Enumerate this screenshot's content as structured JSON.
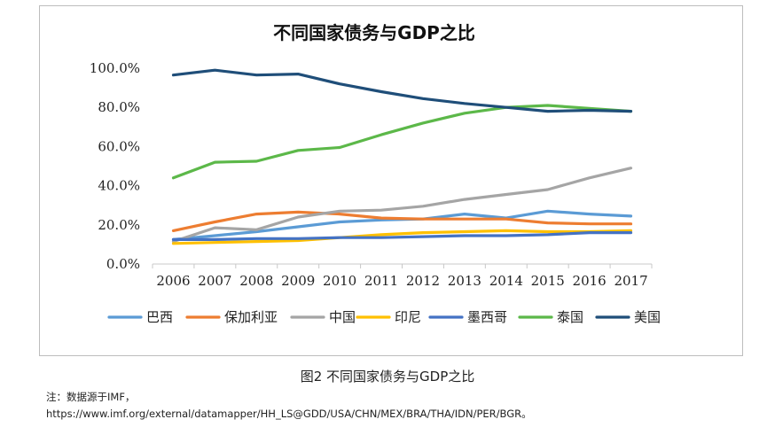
{
  "chart_data": {
    "type": "line",
    "title": "不同国家债务与GDP之比",
    "xlabel": "",
    "ylabel": "",
    "x": [
      "2006",
      "2007",
      "2008",
      "2009",
      "2010",
      "2011",
      "2012",
      "2013",
      "2014",
      "2015",
      "2016",
      "2017"
    ],
    "ylim": [
      0,
      100
    ],
    "yticks": [
      "0.0%",
      "20.0%",
      "40.0%",
      "60.0%",
      "80.0%",
      "100.0%"
    ],
    "grid": false,
    "legend_position": "bottom",
    "series": [
      {
        "name": "巴西",
        "color": "#5B9BD5",
        "values": [
          12.5,
          14.5,
          16.5,
          19.0,
          21.5,
          22.5,
          23.0,
          25.5,
          23.5,
          27.0,
          25.5,
          24.5
        ]
      },
      {
        "name": "保加利亚",
        "color": "#ED7D31",
        "values": [
          17.0,
          21.5,
          25.5,
          26.5,
          25.5,
          23.5,
          23.0,
          23.0,
          23.0,
          21.0,
          20.5,
          20.5
        ]
      },
      {
        "name": "中国",
        "color": "#A5A5A5",
        "values": [
          11.5,
          18.5,
          17.5,
          24.0,
          27.0,
          27.5,
          29.5,
          33.0,
          35.5,
          38.0,
          44.0,
          49.0
        ]
      },
      {
        "name": "印尼",
        "color": "#FFC000",
        "values": [
          10.5,
          11.0,
          11.5,
          12.0,
          13.5,
          15.0,
          16.0,
          16.5,
          17.0,
          16.5,
          16.5,
          17.0
        ]
      },
      {
        "name": "墨西哥",
        "color": "#4472C4",
        "values": [
          12.5,
          12.5,
          13.0,
          13.0,
          13.5,
          13.5,
          14.0,
          14.5,
          14.5,
          15.0,
          16.0,
          16.0
        ]
      },
      {
        "name": "泰国",
        "color": "#5CB849",
        "values": [
          44.0,
          52.0,
          52.5,
          58.0,
          59.5,
          66.0,
          72.0,
          77.0,
          80.0,
          81.0,
          79.5,
          78.0
        ]
      },
      {
        "name": "美国",
        "color": "#1F4E79",
        "values": [
          96.5,
          99.0,
          96.5,
          97.0,
          92.0,
          88.0,
          84.5,
          82.0,
          80.0,
          78.0,
          78.5,
          78.0
        ]
      }
    ]
  },
  "caption": "图2 不同国家债务与GDP之比",
  "note": {
    "line1": "注：数据源于IMF，",
    "line2": "https://www.imf.org/external/datamapper/HH_LS@GDD/USA/CHN/MEX/BRA/THA/IDN/PER/BGR。"
  }
}
